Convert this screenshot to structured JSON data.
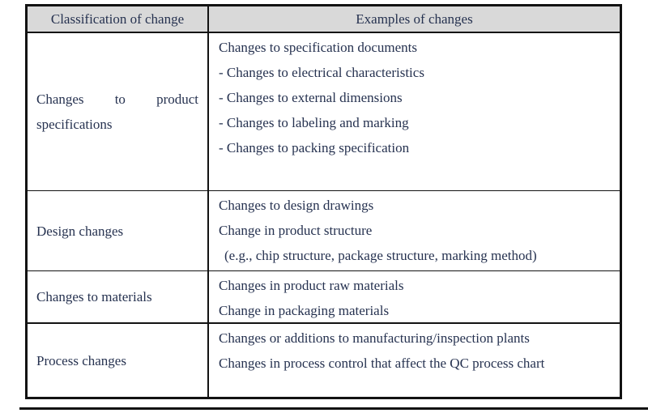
{
  "theme": {
    "bg": "#ffffff",
    "text": "#263250",
    "border": "#121212",
    "header-bg": "#d9d9d9"
  },
  "table": {
    "headers": [
      "Classification of change",
      "Examples of changes"
    ],
    "rows": [
      {
        "classification": "Changes to product specifications",
        "examples": [
          "Changes to specification documents",
          "- Changes to electrical characteristics",
          "- Changes to external dimensions",
          "- Changes to labeling and marking",
          "- Changes to packing specification"
        ]
      },
      {
        "classification": "Design changes",
        "examples": [
          "Changes to design drawings",
          "Change in product structure",
          "(e.g., chip structure, package structure, marking method)"
        ]
      },
      {
        "classification": "Changes to materials",
        "examples": [
          "Changes in product raw materials",
          "Change in packaging materials"
        ]
      },
      {
        "classification": "Process changes",
        "examples": [
          "Changes or additions to manufacturing/inspection plants",
          "Changes in process control that affect the QC process chart"
        ]
      }
    ]
  }
}
